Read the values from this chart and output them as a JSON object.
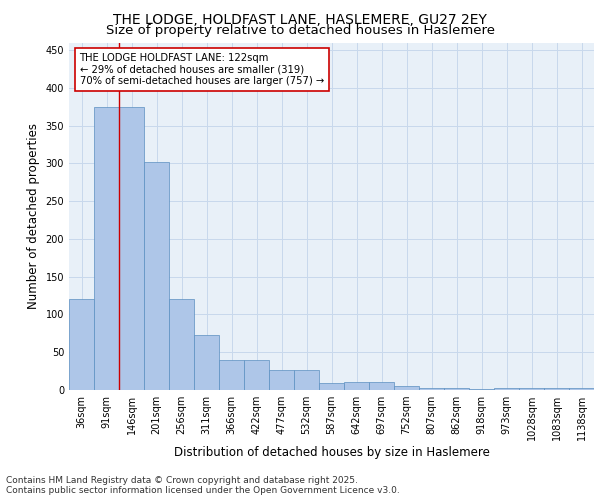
{
  "title_line1": "THE LODGE, HOLDFAST LANE, HASLEMERE, GU27 2EY",
  "title_line2": "Size of property relative to detached houses in Haslemere",
  "xlabel": "Distribution of detached houses by size in Haslemere",
  "ylabel": "Number of detached properties",
  "categories": [
    "36sqm",
    "91sqm",
    "146sqm",
    "201sqm",
    "256sqm",
    "311sqm",
    "366sqm",
    "422sqm",
    "477sqm",
    "532sqm",
    "587sqm",
    "642sqm",
    "697sqm",
    "752sqm",
    "807sqm",
    "862sqm",
    "918sqm",
    "973sqm",
    "1028sqm",
    "1083sqm",
    "1138sqm"
  ],
  "values": [
    120,
    375,
    375,
    302,
    120,
    73,
    40,
    40,
    26,
    26,
    9,
    10,
    10,
    5,
    2,
    2,
    1,
    2,
    2,
    2,
    3
  ],
  "bar_color": "#aec6e8",
  "bar_edge_color": "#5a8fc0",
  "grid_color": "#c8d8ec",
  "bg_color": "#e8f0f8",
  "vline_x_index": 1.5,
  "vline_color": "#cc0000",
  "annotation_text": "THE LODGE HOLDFAST LANE: 122sqm\n← 29% of detached houses are smaller (319)\n70% of semi-detached houses are larger (757) →",
  "annotation_box_color": "#cc0000",
  "ylim": [
    0,
    460
  ],
  "yticks": [
    0,
    50,
    100,
    150,
    200,
    250,
    300,
    350,
    400,
    450
  ],
  "footnote": "Contains HM Land Registry data © Crown copyright and database right 2025.\nContains public sector information licensed under the Open Government Licence v3.0.",
  "title_fontsize": 10,
  "subtitle_fontsize": 9.5,
  "tick_fontsize": 7,
  "label_fontsize": 8.5,
  "footnote_fontsize": 6.5
}
